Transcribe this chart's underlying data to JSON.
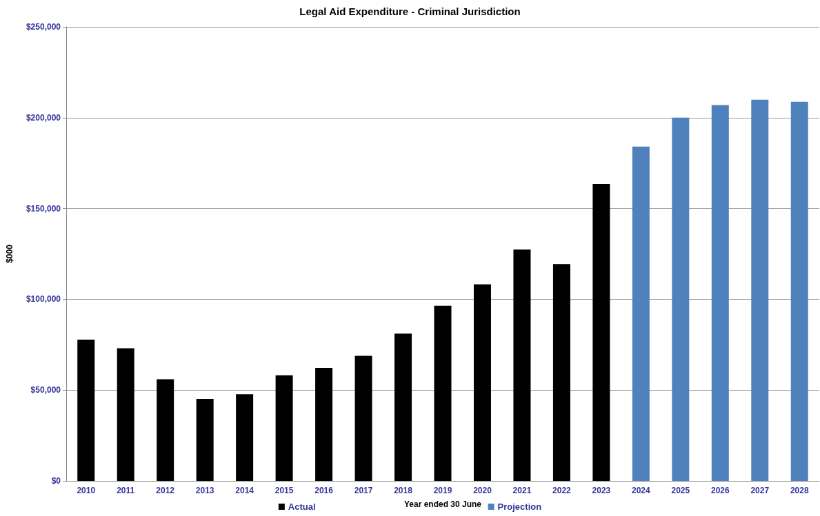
{
  "chart_data": {
    "type": "bar",
    "title": "Legal Aid Expenditure - Criminal Jurisdiction",
    "xlabel": "Year ended 30 June",
    "ylabel": "$000",
    "categories": [
      "2010",
      "2011",
      "2012",
      "2013",
      "2014",
      "2015",
      "2016",
      "2017",
      "2018",
      "2019",
      "2020",
      "2021",
      "2022",
      "2023",
      "2024",
      "2025",
      "2026",
      "2027",
      "2028"
    ],
    "series": [
      {
        "name": "Actual",
        "color": "#000000",
        "values": [
          77800,
          73000,
          56000,
          45100,
          47700,
          58100,
          62200,
          68900,
          81100,
          96500,
          108200,
          127400,
          119400,
          163500,
          null,
          null,
          null,
          null,
          null
        ]
      },
      {
        "name": "Projection",
        "color": "#4f81bd",
        "values": [
          null,
          null,
          null,
          null,
          null,
          null,
          null,
          null,
          null,
          null,
          null,
          null,
          null,
          null,
          184100,
          200000,
          206900,
          209900,
          208700
        ]
      }
    ],
    "ylim": [
      0,
      250000
    ],
    "yticks": [
      {
        "value": 0,
        "label": "$0"
      },
      {
        "value": 50000,
        "label": "$50,000"
      },
      {
        "value": 100000,
        "label": "$100,000"
      },
      {
        "value": 150000,
        "label": "$150,000"
      },
      {
        "value": 200000,
        "label": "$200,000"
      },
      {
        "value": 250000,
        "label": "$250,000"
      }
    ],
    "grid": "y",
    "legend": "bottom"
  }
}
